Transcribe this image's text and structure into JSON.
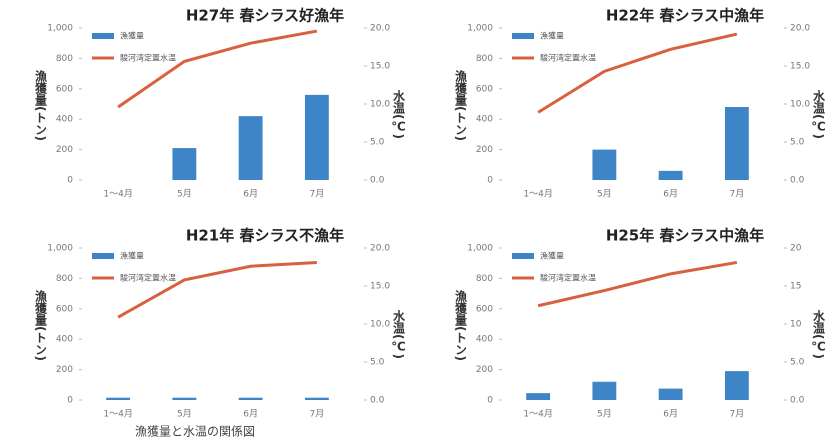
{
  "chart_data": [
    {
      "type": "combo",
      "title": "H27年 春シラス好漁年",
      "categories": [
        "1～4月",
        "5月",
        "6月",
        "7月"
      ],
      "series": [
        {
          "name": "漁獲量",
          "type": "bar",
          "color": "#3d85c6",
          "values": [
            0,
            210,
            420,
            560
          ]
        },
        {
          "name": "駿河湾定置水温",
          "type": "line",
          "axis": "y2",
          "color": "#d8603f",
          "values": [
            9.6,
            15.6,
            18.0,
            19.6
          ]
        }
      ],
      "ylim": [
        0,
        1000
      ],
      "yticks": [
        0,
        200,
        400,
        600,
        800,
        {
          "value": 1000,
          "label": "1,000"
        }
      ],
      "y2lim": [
        0,
        20
      ],
      "y2ticks": [
        {
          "value": 0,
          "label": "0.0"
        },
        {
          "value": 5,
          "label": "5.0"
        },
        {
          "value": 10,
          "label": "10.0"
        },
        {
          "value": 15,
          "label": "15.0"
        },
        {
          "value": 20,
          "label": "20.0"
        }
      ],
      "y_label": "漁獲量(トン)",
      "y2_label": "水温(℃)"
    },
    {
      "type": "combo",
      "title": "H22年 春シラス中漁年",
      "categories": [
        "1～4月",
        "5月",
        "6月",
        "7月"
      ],
      "series": [
        {
          "name": "漁獲量",
          "type": "bar",
          "color": "#3d85c6",
          "values": [
            0,
            200,
            60,
            480
          ]
        },
        {
          "name": "駿河湾定置水温",
          "type": "line",
          "axis": "y2",
          "color": "#d8603f",
          "values": [
            8.9,
            14.3,
            17.2,
            19.2
          ]
        }
      ],
      "ylim": [
        0,
        1000
      ],
      "yticks": [
        0,
        200,
        400,
        600,
        800,
        {
          "value": 1000,
          "label": "1,000"
        }
      ],
      "y2lim": [
        0,
        20
      ],
      "y2ticks": [
        {
          "value": 0,
          "label": "0.0"
        },
        {
          "value": 5,
          "label": "5.0"
        },
        {
          "value": 10,
          "label": "10.0"
        },
        {
          "value": 15,
          "label": "15.0"
        },
        {
          "value": 20,
          "label": "20.0"
        }
      ],
      "y_label": "漁獲量(トン)",
      "y2_label": "水温(℃)"
    },
    {
      "type": "combo",
      "title": "H21年 春シラス不漁年",
      "categories": [
        "1～4月",
        "5月",
        "6月",
        "7月"
      ],
      "series": [
        {
          "name": "漁獲量",
          "type": "bar",
          "color": "#3d85c6",
          "values": [
            15,
            15,
            15,
            15
          ]
        },
        {
          "name": "駿河湾定置水温",
          "type": "line",
          "axis": "y2",
          "color": "#d8603f",
          "values": [
            10.9,
            15.8,
            17.6,
            18.1
          ]
        }
      ],
      "ylim": [
        0,
        1000
      ],
      "yticks": [
        0,
        200,
        400,
        600,
        800,
        {
          "value": 1000,
          "label": "1,000"
        }
      ],
      "y2lim": [
        0,
        20
      ],
      "y2ticks": [
        {
          "value": 0,
          "label": "0.0"
        },
        {
          "value": 5,
          "label": "5.0"
        },
        {
          "value": 10,
          "label": "10.0"
        },
        {
          "value": 15,
          "label": "15.0"
        },
        {
          "value": 20,
          "label": "20.0"
        }
      ],
      "y_label": "漁獲量(トン)",
      "y2_label": "水温(℃)"
    },
    {
      "type": "combo",
      "title": "H25年 春シラス中漁年",
      "categories": [
        "1～4月",
        "5月",
        "6月",
        "7月"
      ],
      "series": [
        {
          "name": "漁獲量",
          "type": "bar",
          "color": "#3d85c6",
          "values": [
            45,
            120,
            75,
            190
          ]
        },
        {
          "name": "駿河湾定置水温",
          "type": "line",
          "axis": "y2",
          "color": "#d8603f",
          "values": [
            12.4,
            14.4,
            16.6,
            18.1
          ]
        }
      ],
      "ylim": [
        0,
        1000
      ],
      "yticks": [
        0,
        200,
        400,
        600,
        800,
        {
          "value": 1000,
          "label": "1,000"
        }
      ],
      "y2lim": [
        0,
        20
      ],
      "y2ticks": [
        {
          "value": 0,
          "label": "0.0"
        },
        {
          "value": 5,
          "label": "5.0"
        },
        10,
        15,
        20
      ],
      "y_label": "漁獲量(トン)",
      "y2_label": "水温(℃)"
    }
  ],
  "caption": "漁獲量と水温の関係図"
}
